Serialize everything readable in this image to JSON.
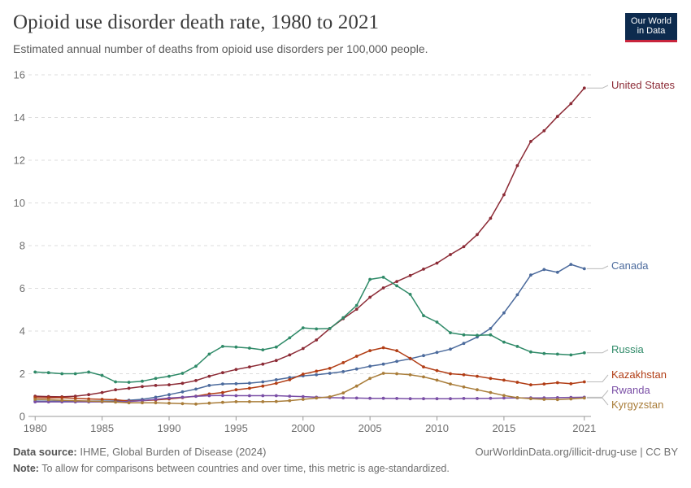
{
  "header": {
    "title": "Opioid use disorder death rate, 1980 to 2021",
    "subtitle": "Estimated annual number of deaths from opioid use disorders per 100,000 people.",
    "logo_line1": "Our World",
    "logo_line2": "in Data"
  },
  "footer": {
    "source_label": "Data source:",
    "source_text": "IHME, Global Burden of Disease (2024)",
    "url": "OurWorldinData.org/illicit-drug-use | CC BY",
    "note_label": "Note:",
    "note_text": "To allow for comparisons between countries and over time, this metric is age-standardized."
  },
  "colors": {
    "United States": "#8c2b36",
    "Canada": "#4b6a9c",
    "Russia": "#2f8a68",
    "Kazakhstan": "#b13d15",
    "Rwanda": "#7a4fa6",
    "Kyrgyzstan": "#a97d3a",
    "grid": "#dddddd",
    "axis": "#999999"
  },
  "chart_data": {
    "type": "line",
    "title": "Opioid use disorder death rate, 1980 to 2021",
    "xlim": [
      1979.5,
      2021.5
    ],
    "ylim": [
      0,
      16
    ],
    "xticks": [
      1980,
      1985,
      1990,
      1995,
      2000,
      2005,
      2010,
      2015,
      2021
    ],
    "yticks": [
      0,
      2,
      4,
      6,
      8,
      10,
      12,
      14,
      16
    ],
    "grid": true,
    "legend": "line-end labels on right",
    "x": [
      1979,
      1980,
      1981,
      1982,
      1983,
      1984,
      1985,
      1986,
      1987,
      1988,
      1989,
      1990,
      1991,
      1992,
      1993,
      1994,
      1995,
      1996,
      1997,
      1998,
      1999,
      2000,
      2001,
      2002,
      2003,
      2004,
      2005,
      2006,
      2007,
      2008,
      2009,
      2010,
      2011,
      2012,
      2013,
      2014,
      2015,
      2016,
      2017,
      2018,
      2019,
      2020,
      2021
    ],
    "series": [
      {
        "name": "United States",
        "values": [
          0.95,
          0.95,
          0.93,
          0.92,
          0.95,
          1.02,
          1.12,
          1.25,
          1.32,
          1.4,
          1.45,
          1.48,
          1.55,
          1.68,
          1.88,
          2.05,
          2.2,
          2.32,
          2.45,
          2.62,
          2.88,
          3.18,
          3.58,
          4.12,
          4.58,
          5.02,
          5.58,
          6.02,
          6.32,
          6.6,
          6.9,
          7.18,
          7.58,
          7.95,
          8.52,
          9.28,
          10.38,
          11.75,
          12.88,
          13.38,
          14.05,
          14.65,
          15.38
        ]
      },
      {
        "name": "Canada",
        "values": [
          0.72,
          0.72,
          0.71,
          0.71,
          0.72,
          0.72,
          0.72,
          0.72,
          0.76,
          0.8,
          0.9,
          1.02,
          1.15,
          1.28,
          1.45,
          1.52,
          1.53,
          1.56,
          1.62,
          1.72,
          1.82,
          1.9,
          1.95,
          2.02,
          2.1,
          2.22,
          2.35,
          2.45,
          2.58,
          2.7,
          2.85,
          3.0,
          3.15,
          3.42,
          3.72,
          4.12,
          4.85,
          5.7,
          6.62,
          6.88,
          6.75,
          7.12,
          6.92
        ]
      },
      {
        "name": "Russia",
        "values": [
          2.12,
          2.08,
          2.05,
          2.0,
          2.0,
          2.08,
          1.92,
          1.62,
          1.6,
          1.65,
          1.78,
          1.88,
          2.02,
          2.35,
          2.92,
          3.28,
          3.25,
          3.2,
          3.12,
          3.25,
          3.68,
          4.15,
          4.1,
          4.12,
          4.62,
          5.2,
          6.42,
          6.52,
          6.12,
          5.72,
          4.72,
          4.42,
          3.92,
          3.82,
          3.8,
          3.82,
          3.48,
          3.28,
          3.02,
          2.95,
          2.92,
          2.88,
          2.98
        ]
      },
      {
        "name": "Kazakhstan",
        "values": [
          0.88,
          0.88,
          0.87,
          0.88,
          0.85,
          0.82,
          0.8,
          0.78,
          0.72,
          0.74,
          0.77,
          0.82,
          0.88,
          0.95,
          1.05,
          1.12,
          1.25,
          1.32,
          1.42,
          1.55,
          1.72,
          1.98,
          2.12,
          2.25,
          2.52,
          2.82,
          3.08,
          3.22,
          3.08,
          2.72,
          2.32,
          2.15,
          2.0,
          1.95,
          1.88,
          1.78,
          1.7,
          1.6,
          1.48,
          1.52,
          1.58,
          1.53,
          1.62
        ]
      },
      {
        "name": "Rwanda",
        "values": [
          0.68,
          0.68,
          0.68,
          0.68,
          0.68,
          0.68,
          0.68,
          0.68,
          0.7,
          0.74,
          0.8,
          0.86,
          0.9,
          0.94,
          0.97,
          0.98,
          0.97,
          0.97,
          0.97,
          0.97,
          0.95,
          0.93,
          0.9,
          0.88,
          0.87,
          0.86,
          0.85,
          0.85,
          0.84,
          0.83,
          0.83,
          0.83,
          0.83,
          0.84,
          0.84,
          0.85,
          0.86,
          0.87,
          0.87,
          0.87,
          0.88,
          0.89,
          0.9
        ]
      },
      {
        "name": "Kyrgyzstan",
        "values": [
          0.82,
          0.8,
          0.78,
          0.76,
          0.74,
          0.72,
          0.7,
          0.67,
          0.64,
          0.64,
          0.64,
          0.62,
          0.6,
          0.58,
          0.62,
          0.66,
          0.69,
          0.69,
          0.69,
          0.7,
          0.74,
          0.8,
          0.86,
          0.92,
          1.1,
          1.42,
          1.78,
          2.02,
          2.0,
          1.95,
          1.85,
          1.7,
          1.52,
          1.38,
          1.25,
          1.12,
          0.98,
          0.88,
          0.83,
          0.8,
          0.79,
          0.82,
          0.86
        ]
      }
    ]
  }
}
